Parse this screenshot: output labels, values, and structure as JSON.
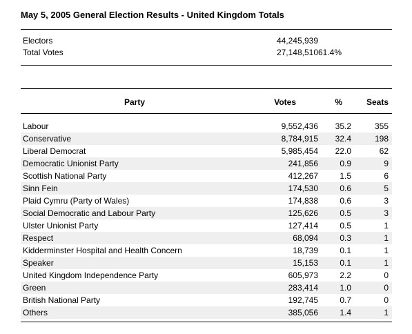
{
  "title": "May 5, 2005 General Election Results - United Kingdom Totals",
  "summary": {
    "electors_label": "Electors",
    "electors_value": "44,245,939",
    "votes_label": "Total Votes",
    "votes_value": "27,148,510",
    "turnout": "61.4%"
  },
  "table": {
    "headers": {
      "party": "Party",
      "votes": "Votes",
      "pct": "%",
      "seats": "Seats"
    },
    "rows": [
      {
        "party": "Labour",
        "votes": "9,552,436",
        "pct": "35.2",
        "seats": "355"
      },
      {
        "party": "Conservative",
        "votes": "8,784,915",
        "pct": "32.4",
        "seats": "198"
      },
      {
        "party": "Liberal Democrat",
        "votes": "5,985,454",
        "pct": "22.0",
        "seats": "62"
      },
      {
        "party": "Democratic Unionist Party",
        "votes": "241,856",
        "pct": "0.9",
        "seats": "9"
      },
      {
        "party": "Scottish National Party",
        "votes": "412,267",
        "pct": "1.5",
        "seats": "6"
      },
      {
        "party": "Sinn Fein",
        "votes": "174,530",
        "pct": "0.6",
        "seats": "5"
      },
      {
        "party": "Plaid Cymru (Party of Wales)",
        "votes": "174,838",
        "pct": "0.6",
        "seats": "3"
      },
      {
        "party": "Social Democratic and Labour Party",
        "votes": "125,626",
        "pct": "0.5",
        "seats": "3"
      },
      {
        "party": "Ulster Unionist Party",
        "votes": "127,414",
        "pct": "0.5",
        "seats": "1"
      },
      {
        "party": "Respect",
        "votes": "68,094",
        "pct": "0.3",
        "seats": "1"
      },
      {
        "party": "Kidderminster Hospital and Health Concern",
        "votes": "18,739",
        "pct": "0.1",
        "seats": "1"
      },
      {
        "party": "Speaker",
        "votes": "15,153",
        "pct": "0.1",
        "seats": "1"
      },
      {
        "party": "United Kingdom Independence Party",
        "votes": "605,973",
        "pct": "2.2",
        "seats": "0"
      },
      {
        "party": "Green",
        "votes": "283,414",
        "pct": "1.0",
        "seats": "0"
      },
      {
        "party": "British National Party",
        "votes": "192,745",
        "pct": "0.7",
        "seats": "0"
      },
      {
        "party": "Others",
        "votes": "385,056",
        "pct": "1.4",
        "seats": "1"
      }
    ]
  }
}
